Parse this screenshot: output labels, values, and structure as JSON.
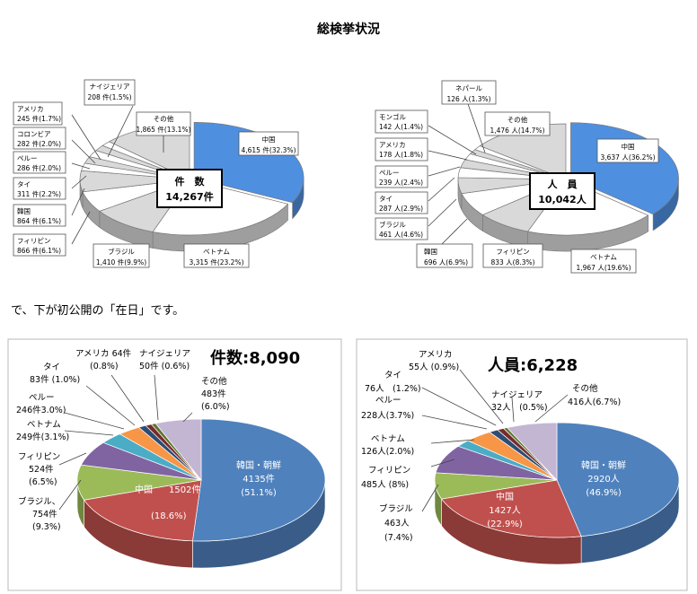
{
  "page": {
    "title": "総検挙状況",
    "caption": "で、下が初公開の「在日」です。"
  },
  "chart_data": [
    {
      "type": "pie",
      "center_label": [
        "件　数",
        "14,267件"
      ],
      "slices": [
        {
          "name": "中国",
          "label": "4,615 件(32.3%)",
          "value": 32.3,
          "color": "#4f8fe0"
        },
        {
          "name": "ベトナム",
          "label": "3,315 件(23.2%)",
          "value": 23.2,
          "color": "#ffffff"
        },
        {
          "name": "ブラジル",
          "label": "1,410 件(9.9%)",
          "value": 9.9,
          "color": "#d9d9d9"
        },
        {
          "name": "フィリピン",
          "label": "866 件(6.1%)",
          "value": 6.1,
          "color": "#ffffff"
        },
        {
          "name": "韓国",
          "label": "864 件(6.1%)",
          "value": 6.1,
          "color": "#d9d9d9"
        },
        {
          "name": "タイ",
          "label": "311 件(2.2%)",
          "value": 2.2,
          "color": "#ffffff"
        },
        {
          "name": "ペルー",
          "label": "286 件(2.0%)",
          "value": 2.0,
          "color": "#d9d9d9"
        },
        {
          "name": "コロンビア",
          "label": "282 件(2.0%)",
          "value": 2.0,
          "color": "#ffffff"
        },
        {
          "name": "アメリカ",
          "label": "245 件(1.7%)",
          "value": 1.7,
          "color": "#d9d9d9"
        },
        {
          "name": "ナイジェリア",
          "label": "208 件(1.5%)",
          "value": 1.5,
          "color": "#ffffff"
        },
        {
          "name": "その他",
          "label": "1,865 件(13.1%)",
          "value": 13.1,
          "color": "#d9d9d9"
        }
      ]
    },
    {
      "type": "pie",
      "center_label": [
        "人　員",
        "10,042人"
      ],
      "slices": [
        {
          "name": "中国",
          "label": "3,637 人(36.2%)",
          "value": 36.2,
          "color": "#4f8fe0"
        },
        {
          "name": "ベトナム",
          "label": "1,967 人(19.6%)",
          "value": 19.6,
          "color": "#ffffff"
        },
        {
          "name": "フィリピン",
          "label": "833 人(8.3%)",
          "value": 8.3,
          "color": "#d9d9d9"
        },
        {
          "name": "韓国",
          "label": "696 人(6.9%)",
          "value": 6.9,
          "color": "#ffffff"
        },
        {
          "name": "ブラジル",
          "label": "461 人(4.6%)",
          "value": 4.6,
          "color": "#d9d9d9"
        },
        {
          "name": "タイ",
          "label": "287 人(2.9%)",
          "value": 2.9,
          "color": "#ffffff"
        },
        {
          "name": "ペルー",
          "label": "239 人(2.4%)",
          "value": 2.4,
          "color": "#d9d9d9"
        },
        {
          "name": "アメリカ",
          "label": "178 人(1.8%)",
          "value": 1.8,
          "color": "#ffffff"
        },
        {
          "name": "モンゴル",
          "label": "142 人(1.4%)",
          "value": 1.4,
          "color": "#d9d9d9"
        },
        {
          "name": "ネパール",
          "label": "126 人(1.3%)",
          "value": 1.3,
          "color": "#ffffff"
        },
        {
          "name": "その他",
          "label": "1,476 人(14.7%)",
          "value": 14.7,
          "color": "#d9d9d9"
        }
      ]
    },
    {
      "type": "pie",
      "title_label": "件数",
      "title_value": ":8,090",
      "slices": [
        {
          "name": "韓国・朝鮮",
          "label": "4135件",
          "pct": "(51.1%)",
          "value": 51.1,
          "color": "#4f81bd"
        },
        {
          "name": "中国",
          "label": "1502件",
          "pct": "(18.6%)",
          "value": 18.6,
          "color": "#c0504d"
        },
        {
          "name": "ブラジル、",
          "label": "754件",
          "pct": "(9.3%)",
          "value": 9.3,
          "color": "#9bbb59"
        },
        {
          "name": "フィリピン",
          "label": "524件",
          "pct": "(6.5%)",
          "value": 6.5,
          "color": "#8064a2"
        },
        {
          "name": "ベトナム",
          "label": "249件(3.1%)",
          "pct": "",
          "value": 3.1,
          "color": "#4bacc6"
        },
        {
          "name": "ペルー",
          "label": "246件3.0%)",
          "pct": "",
          "value": 3.0,
          "color": "#f79646"
        },
        {
          "name": "タイ",
          "label": "83件 (1.0%)",
          "pct": "",
          "value": 1.0,
          "color": "#2c4d75"
        },
        {
          "name": "アメリカ",
          "label": "64件",
          "pct": "(0.8%)",
          "value": 0.8,
          "color": "#772c2a"
        },
        {
          "name": "ナイジェリア",
          "label": "50件 (0.6%)",
          "pct": "",
          "value": 0.6,
          "color": "#5f7530"
        },
        {
          "name": "その他",
          "label": "483件",
          "pct": "(6.0%)",
          "value": 6.0,
          "color": "#c3b6d3"
        }
      ]
    },
    {
      "type": "pie",
      "title_label": "人員",
      "title_value": ":6,228",
      "slices": [
        {
          "name": "韓国・朝鮮",
          "label": "2920人",
          "pct": "(46.9%)",
          "value": 46.9,
          "color": "#4f81bd"
        },
        {
          "name": "中国",
          "label": "1427人",
          "pct": "(22.9%)",
          "value": 22.9,
          "color": "#c0504d"
        },
        {
          "name": "ブラジル",
          "label": "463人",
          "pct": "(7.4%)",
          "value": 7.4,
          "color": "#9bbb59"
        },
        {
          "name": "フィリピン",
          "label": "485人 (8%)",
          "pct": "",
          "value": 8.0,
          "color": "#8064a2"
        },
        {
          "name": "ベトナム",
          "label": "126人(2.0%)",
          "pct": "",
          "value": 2.0,
          "color": "#4bacc6"
        },
        {
          "name": "ペルー",
          "label": "228人(3.7%)",
          "pct": "",
          "value": 3.7,
          "color": "#f79646"
        },
        {
          "name": "タイ",
          "label": "76人　(1.2%)",
          "pct": "",
          "value": 1.2,
          "color": "#2c4d75"
        },
        {
          "name": "アメリカ",
          "label": "55人 (0.9%)",
          "pct": "",
          "value": 0.9,
          "color": "#772c2a"
        },
        {
          "name": "ナイジェリア",
          "label": "32人　(0.5%)",
          "pct": "",
          "value": 0.5,
          "color": "#5f7530"
        },
        {
          "name": "その他",
          "label": "416人(6.7%)",
          "pct": "",
          "value": 6.7,
          "color": "#c3b6d3"
        }
      ]
    }
  ]
}
